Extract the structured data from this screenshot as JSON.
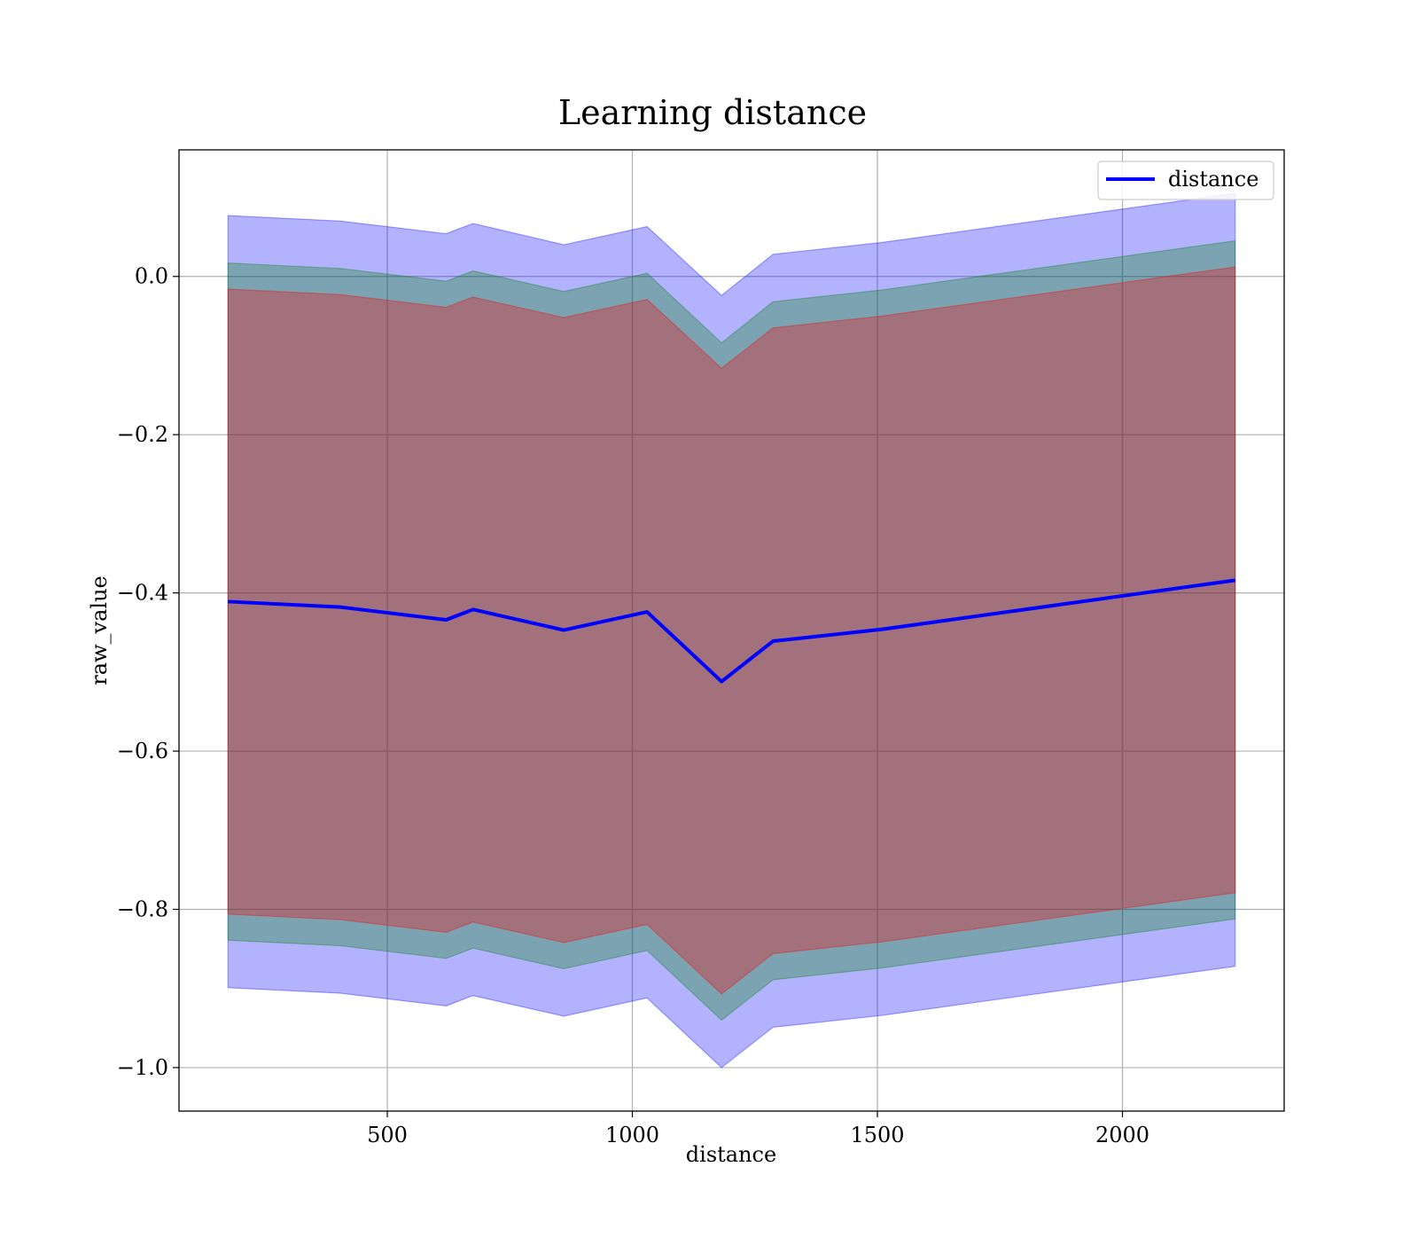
{
  "chart_data": {
    "type": "line",
    "title": "Learning distance",
    "xlabel": "distance",
    "ylabel": "raw_value",
    "xlim": [
      75,
      2330
    ],
    "ylim": [
      -1.055,
      0.16
    ],
    "xticks": [
      500,
      1000,
      1500,
      2000
    ],
    "xtick_labels": [
      "500",
      "1000",
      "1500",
      "2000"
    ],
    "yticks": [
      0.0,
      -0.2,
      -0.4,
      -0.6,
      -0.8,
      -1.0
    ],
    "ytick_labels": [
      "0.0",
      "−0.2",
      "−0.4",
      "−0.6",
      "−0.8",
      "−1.0"
    ],
    "grid": true,
    "legend": {
      "position": "upper right",
      "entries": [
        {
          "label": "distance",
          "color": "#0000ff"
        }
      ]
    },
    "x": [
      175,
      405,
      620,
      675,
      860,
      1030,
      1182,
      1287,
      1510,
      2230
    ],
    "series": [
      {
        "name": "distance",
        "color": "#0000ff",
        "values": [
          -0.411,
          -0.418,
          -0.434,
          -0.421,
          -0.447,
          -0.424,
          -0.512,
          -0.461,
          -0.446,
          -0.384
        ]
      }
    ],
    "bands": [
      {
        "color": "#0000ff",
        "opacity": 0.3,
        "upper": [
          0.077,
          0.07,
          0.054,
          0.067,
          0.04,
          0.063,
          -0.024,
          0.028,
          0.043,
          0.105
        ],
        "lower": [
          -0.899,
          -0.906,
          -0.922,
          -0.909,
          -0.935,
          -0.912,
          -1.0,
          -0.949,
          -0.934,
          -0.872
        ]
      },
      {
        "color": "#008000",
        "opacity": 0.3,
        "upper": [
          0.017,
          0.01,
          -0.006,
          0.007,
          -0.019,
          0.004,
          -0.084,
          -0.032,
          -0.017,
          0.045
        ],
        "lower": [
          -0.839,
          -0.846,
          -0.862,
          -0.849,
          -0.875,
          -0.852,
          -0.94,
          -0.889,
          -0.874,
          -0.812
        ]
      },
      {
        "color": "#ff0000",
        "opacity": 0.3,
        "upper": [
          -0.016,
          -0.023,
          -0.039,
          -0.026,
          -0.052,
          -0.029,
          -0.116,
          -0.065,
          -0.05,
          0.012
        ],
        "lower": [
          -0.806,
          -0.813,
          -0.829,
          -0.816,
          -0.842,
          -0.819,
          -0.907,
          -0.856,
          -0.841,
          -0.779
        ]
      }
    ]
  }
}
